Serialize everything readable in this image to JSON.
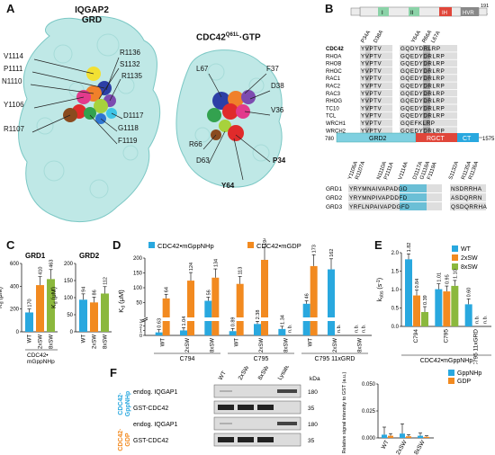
{
  "panels": {
    "A": "A",
    "B": "B",
    "C": "C",
    "D": "D",
    "E": "E",
    "F": "F"
  },
  "panelA": {
    "title1": "IQGAP2",
    "title2": "GRD",
    "title3": "CDC42",
    "title3_sup": "Q61L",
    "title3_suffix": "·GTP",
    "left_labels": [
      "V1114",
      "P1111",
      "N1110",
      "Y1106",
      "R1107"
    ],
    "right_labels": [
      "R1136",
      "S1132",
      "R1135",
      "D1117",
      "G1118",
      "F1119"
    ],
    "cdc_labels": [
      "L67",
      "F37",
      "D38",
      "V36",
      "R66",
      "D63",
      "P34",
      "Y64"
    ]
  },
  "panelB": {
    "top_bar": {
      "start": "1",
      "end": "191",
      "regions": [
        "I",
        "II",
        "IH",
        "HVR"
      ]
    },
    "top_muts": [
      "P34A",
      "D38A",
      "Y64A",
      "R66A",
      "L67A"
    ],
    "proteins": [
      "CDC42",
      "RHOA",
      "RHOB",
      "RHOC",
      "RAC1",
      "RAC2",
      "RAC3",
      "RHOG",
      "TC10",
      "TCL",
      "WRCH1",
      "WRCH2"
    ],
    "seq1": [
      "YVPTV",
      "YVPTV",
      "YVPTV",
      "YVPTV",
      "YVPTV",
      "YVPTV",
      "YVPTV",
      "YVPTV",
      "YVPTV",
      "YVPTV",
      "YVPTV",
      "YVPTV"
    ],
    "seq2": [
      "GQDYDRLRP",
      "GQEDYDRLRP",
      "GQEDYDRLRP",
      "GQEDYDRLRP",
      "GQEDYDRLRP",
      "GQEDYDRLRP",
      "GQEDYDRLRP",
      "GQEDYDRLRP",
      "GQEDYDRLRP",
      "GQEDYDRLRP",
      "GQEFKLRP",
      "GQEDYDRLRP"
    ],
    "bottom_bar": {
      "start": "780",
      "end": "1575",
      "regions": [
        "GRD2",
        "RGCT",
        "CT"
      ]
    },
    "grd_muts": [
      "Y1106A",
      "R1107A",
      "N1110A",
      "P1111A",
      "V1114A",
      "D1117A",
      "G1118A",
      "F1119A",
      "S1132A",
      "R1135A",
      "R1136A"
    ],
    "grd": [
      "GRD1",
      "GRD2",
      "GRD3"
    ],
    "grdseq": [
      "YRYMNAIVAPADGD NSDRRHA",
      "YRYMNPIVAPDDFD ASDQRRN",
      "YRFLNPAIVAPDGFD QSDQRRHA"
    ]
  },
  "panelC": {
    "grd1": {
      "title": "GRD1",
      "ylabel": "K",
      "ylabel_sub": "d",
      "ylabel_unit": " (μM)",
      "ylim": [
        0,
        600
      ],
      "ticks": [
        "0",
        "200",
        "400",
        "600"
      ],
      "categories": [
        "WT",
        "2xSW",
        "8xSW"
      ],
      "values": [
        170,
        410,
        463
      ],
      "labels": [
        "170",
        "410",
        "463"
      ],
      "colors": [
        "#29a8df",
        "#f28a20",
        "#8bb83d"
      ]
    },
    "grd2": {
      "title": "GRD2",
      "ylabel": "K",
      "ylabel_sub": "d",
      "ylabel_unit": " (μM)",
      "ylim": [
        0,
        200
      ],
      "ticks": [
        "0",
        "50",
        "100",
        "150",
        "200"
      ],
      "categories": [
        "WT",
        "2xSW",
        "8xSW"
      ],
      "values": [
        94,
        86,
        112
      ],
      "labels": [
        "94",
        "86",
        "112"
      ],
      "colors": [
        "#29a8df",
        "#f28a20",
        "#8bb83d"
      ]
    },
    "footer1": "CDC42•",
    "footer2": "mGppNHp"
  },
  "panelD": {
    "legend": [
      "CDC42•mGppNHp",
      "CDC42•mGDP"
    ],
    "colors": [
      "#29a8df",
      "#f28a20"
    ],
    "ylabel": "K",
    "ylabel_sub": "d",
    "ylabel_unit": " (μM)",
    "upper_ticks": [
      "50",
      "100",
      "150",
      "200"
    ],
    "lower_ticks": [
      "0",
      "1",
      "2",
      "3"
    ],
    "groups": [
      "C794",
      "C795",
      "C795 11xGRD"
    ],
    "categories": [
      "WT",
      "2xSW",
      "8xSW",
      "WT",
      "2xSW",
      "8xSW",
      "WT",
      "2xSW",
      "8xSW"
    ],
    "gpp_values": [
      0.63,
      1.04,
      56,
      0.89,
      2.38,
      1.34,
      46,
      162,
      null
    ],
    "gdp_values": [
      64,
      124,
      134,
      113,
      194,
      null,
      173,
      null,
      null
    ],
    "gpp_labels": [
      "0.63",
      "1.04",
      "56",
      "0.89",
      "2.38",
      "1.34",
      "46",
      "162",
      "n.b."
    ],
    "gdp_labels": [
      "64",
      "124",
      "134",
      "113",
      "194",
      "n.b.",
      "173",
      "n.b.",
      "n.b."
    ]
  },
  "panelE": {
    "legend": [
      "WT",
      "2xSW",
      "8xSW"
    ],
    "colors": [
      "#29a8df",
      "#f28a20",
      "#8bb83d"
    ],
    "ylabel": "k",
    "ylabel_sub": "obs",
    "ylabel_unit": " (s",
    "ylabel_sup": "-1",
    "ylabel_end": ")",
    "ticks": [
      "0.0",
      "0.5",
      "1.0",
      "1.5",
      "2.0"
    ],
    "ylim": [
      0,
      2
    ],
    "groups": [
      "C794",
      "C795",
      "C795 11xGRD"
    ],
    "values": [
      [
        1.82,
        0.84,
        0.39
      ],
      [
        1.01,
        0.95,
        1.1
      ],
      [
        0.6,
        null,
        null
      ]
    ],
    "labels": [
      [
        "1.82",
        "0.84",
        "0.39"
      ],
      [
        "1.01",
        "0.95",
        "1.10"
      ],
      [
        "0.60",
        "n.b.",
        "n.b."
      ]
    ],
    "footer": "CDC42•mGppNHp"
  },
  "panelF": {
    "side1a": "CDC42·",
    "side1b": "GppNHp",
    "side2a": "CDC42·",
    "side2b": "GDP",
    "rows": [
      "endog. IQGAP1",
      "GST-CDC42",
      "endog. IQGAP1",
      "GST-CDC42"
    ],
    "lanes": [
      "WT",
      "2xSW",
      "8xSW",
      "Lysate"
    ],
    "kda_title": "kDa",
    "kda": [
      "180",
      "35",
      "180",
      "35"
    ],
    "chart": {
      "legend": [
        "GppNHp",
        "GDP"
      ],
      "colors": [
        "#29a8df",
        "#f28a20"
      ],
      "ylabel": "Relative signal intensity to GST (a.u.)",
      "ticks": [
        "0.000",
        "0.025",
        "0.050"
      ],
      "ylim": [
        0,
        0.05
      ],
      "categories": [
        "WT",
        "2xSW",
        "8xSW"
      ],
      "gpp_values": [
        0.003,
        0.004,
        0.002
      ],
      "gdp_values": [
        0.002,
        0.0015,
        0.001
      ],
      "gpp_err": [
        0.007,
        0.009,
        0.0025
      ],
      "gdp_err": [
        0.002,
        0.0015,
        0.001
      ]
    }
  }
}
